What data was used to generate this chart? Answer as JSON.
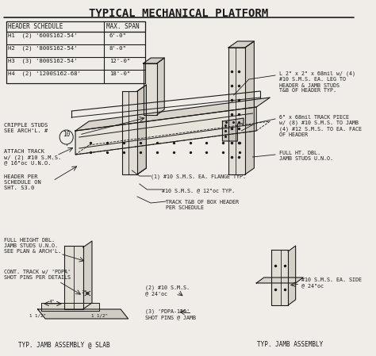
{
  "title": "TYPICAL MECHANICAL PLATFORM",
  "bg_color": "#f0ede8",
  "line_color": "#1a1a1a",
  "table": {
    "headers": [
      "HEADER SCHEDULE",
      "MAX. SPAN"
    ],
    "rows": [
      [
        "H1  (2) '600S162-54'",
        "6'-0\""
      ],
      [
        "H2  (2) '800S162-54'",
        "8'-0\""
      ],
      [
        "H3  (3) '800S162-54'",
        "12'-0\""
      ],
      [
        "H4  (2) '1200S162-68'",
        "18'-0\""
      ]
    ]
  },
  "left_annotations": [
    "CRIPPLE STUDS\nSEE ARCH'L. #",
    "ATTACH TRACK\nw/ (2) #10 S.M.S.\n@ 16\"oc U.N.O.",
    "HEADER PER\nSCHEDULE ON\nSHT. S3.0"
  ],
  "right_annotations": [
    "L 2\" x 2\" x 68mil w/ (4)\n#10 S.M.S. EA. LEG TO\nHEADER & JAMB STUDS\nT&B OF HEADER TYP.",
    "6\" x 68mil TRACK PIECE\nw/ (8) #10 S.M.S. TO JAMB\n(4) #12 S.M.S. TO EA. FACE\nOF HEADER",
    "FULL HT. DBL.\nJAMB STUDS U.N.O.",
    "(1) #10 S.M.S. EA. FLANGE TYP.",
    "#10 S.M.S. @ 12\"oc TYP.",
    "TRACK T&B OF BOX HEADER\nPER SCHEDULE"
  ],
  "bottom_left_annotations": [
    "FULL HEIGHT DBL.\nJAMB STUDS U.N.O.\nSEE PLAN & ARCH'L.",
    "CONT. TRACK w/ 'PDPA'\nSHOT PINS PER DETAILS"
  ],
  "bottom_middle_annotations": [
    "(2) #10 S.M.S.\n@ 24'oc",
    "(3) 'PDPA-150'\nSHOT PINS @ JAMB"
  ],
  "bottom_right_annotations": [
    "#10 S.M.S. EA. SIDE\n@ 24\"oc"
  ],
  "bottom_labels": [
    "TYP. JAMB ASSEMBLY @ SLAB",
    "TYP. JAMB ASSEMBLY"
  ]
}
